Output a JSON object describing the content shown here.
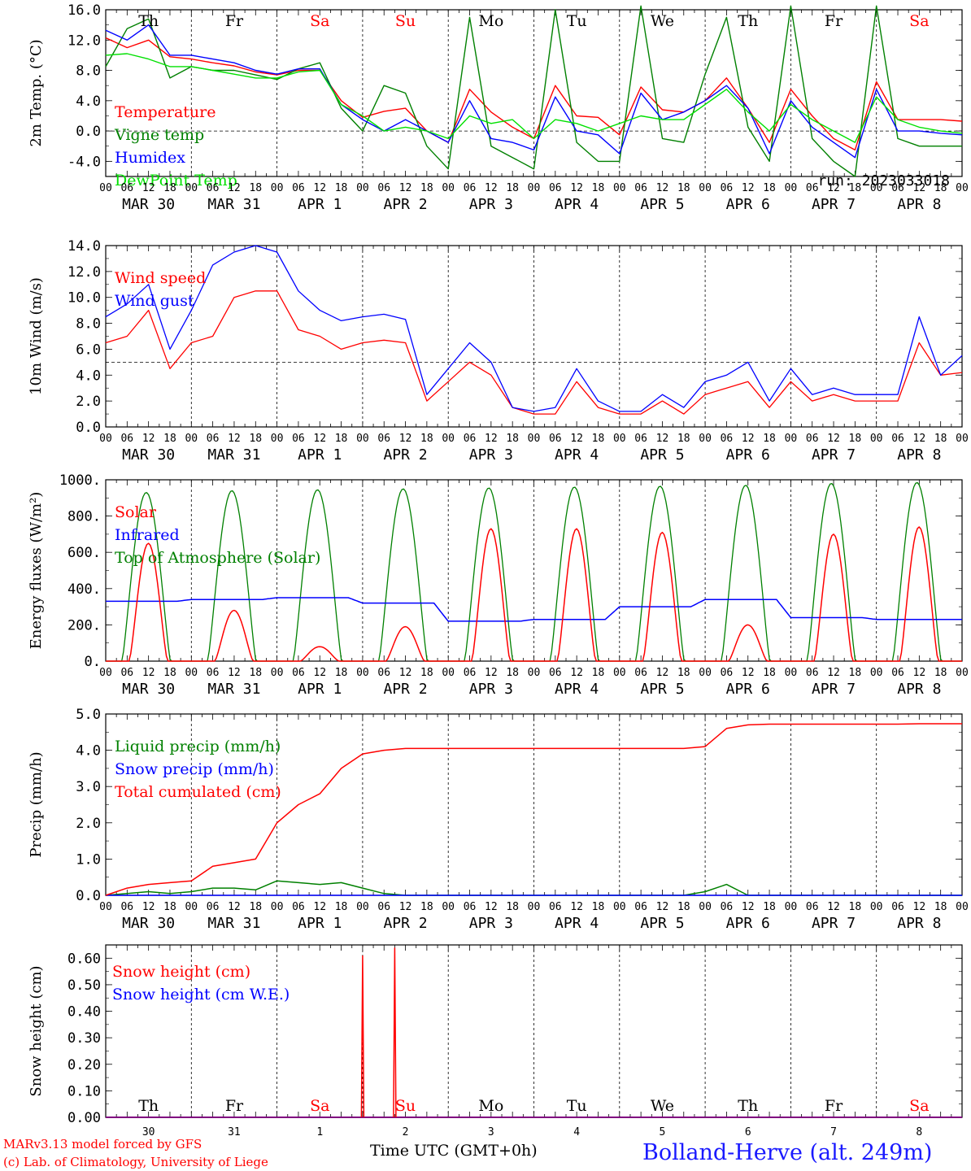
{
  "footer": {
    "model": "MARv3.13 model forced by GFS",
    "credit": "(c) Lab. of Climatology, University of Liege",
    "xlabel": "Time UTC (GMT+0h)",
    "station": "Bolland-Herve (alt. 249m)"
  },
  "run_label": "run: 2023033018",
  "days": {
    "weekday": [
      "Th",
      "Fr",
      "Sa",
      "Su",
      "Mo",
      "Tu",
      "We",
      "Th",
      "Fr",
      "Sa"
    ],
    "weekend_flags": [
      false,
      false,
      true,
      true,
      false,
      false,
      false,
      false,
      false,
      true
    ],
    "dates": [
      "MAR 30",
      "MAR 31",
      "APR  1",
      "APR  2",
      "APR  3",
      "APR  4",
      "APR  5",
      "APR  6",
      "APR  7",
      "APR  8"
    ],
    "day_numbers": [
      "30",
      "31",
      "1",
      "2",
      "3",
      "4",
      "5",
      "6",
      "7",
      "8"
    ],
    "hour_ticks": [
      "00",
      "06",
      "12",
      "18"
    ],
    "end_tick": "00"
  },
  "colors": {
    "red": "#ff0000",
    "dark_green": "#008000",
    "blue": "#0000ff",
    "light_green": "#00e000",
    "black": "#000000"
  },
  "chart_data": [
    {
      "type": "line",
      "ylabel": "2m Temp. (°C)",
      "ylim": [
        -6,
        16
      ],
      "ytick_labels": [
        "-4.0",
        "0.0",
        "4.0",
        "8.0",
        "12.0",
        "16.0"
      ],
      "ytick_values": [
        -4,
        0,
        4,
        8,
        12,
        16
      ],
      "ref_line": 0,
      "x_hours": [
        0,
        6,
        12,
        18,
        24,
        30,
        36,
        42,
        48,
        54,
        60,
        66,
        72,
        78,
        84,
        90,
        96,
        102,
        108,
        114,
        120,
        126,
        132,
        138,
        144,
        150,
        156,
        162,
        168,
        174,
        180,
        186,
        192,
        198,
        204,
        210,
        216,
        222,
        228,
        234,
        240
      ],
      "series": [
        {
          "name": "Temperature",
          "color": "#ff0000",
          "values": [
            12.3,
            11.0,
            12.0,
            9.8,
            9.5,
            9.0,
            8.6,
            7.8,
            7.4,
            8.0,
            8.0,
            4.0,
            1.8,
            2.6,
            3.0,
            0.0,
            -1.5,
            5.5,
            2.5,
            0.5,
            -1.0,
            6.0,
            2.0,
            1.8,
            -0.5,
            5.8,
            2.8,
            2.5,
            4.0,
            7.0,
            3.0,
            -1.5,
            5.5,
            2.0,
            -1.0,
            -2.5,
            6.5,
            1.5,
            1.5,
            1.5,
            1.3
          ]
        },
        {
          "name": "Vigne temp",
          "color": "#008000",
          "values": [
            8.5,
            13.5,
            14.8,
            7.0,
            8.5,
            8.0,
            8.0,
            7.4,
            6.8,
            8.2,
            9.0,
            3.0,
            0.0,
            6.0,
            5.0,
            -2.0,
            -5.0,
            15.0,
            -2.0,
            -3.5,
            -5.0,
            16.0,
            -1.5,
            -4.0,
            -4.0,
            16.5,
            -1.0,
            -1.5,
            7.5,
            15.0,
            0.5,
            -4.0,
            16.5,
            -1.0,
            -4.0,
            -6.0,
            16.5,
            -1.0,
            -2.0,
            -2.0,
            -2.0
          ]
        },
        {
          "name": "Humidex",
          "color": "#0000ff",
          "values": [
            13.3,
            12.0,
            14.0,
            10.0,
            10.0,
            9.5,
            9.0,
            8.0,
            7.5,
            8.2,
            8.2,
            3.5,
            1.5,
            0.0,
            1.5,
            0.0,
            -1.5,
            4.0,
            -1.0,
            -1.5,
            -2.5,
            4.5,
            0.0,
            -0.5,
            -3.0,
            5.0,
            1.5,
            2.5,
            4.0,
            6.0,
            3.0,
            -3.0,
            4.0,
            0.5,
            -1.5,
            -3.5,
            5.5,
            0.0,
            0.0,
            -0.3,
            -0.5
          ]
        },
        {
          "name": "DewPoint Temp",
          "color": "#00e000",
          "values": [
            10.0,
            10.2,
            9.5,
            8.5,
            8.5,
            8.0,
            7.5,
            7.0,
            7.0,
            7.8,
            8.0,
            3.5,
            2.0,
            0.0,
            0.5,
            0.0,
            -1.0,
            2.0,
            1.0,
            1.5,
            -1.0,
            1.5,
            1.0,
            0.0,
            1.0,
            2.0,
            1.5,
            1.5,
            3.5,
            5.5,
            2.5,
            0.0,
            3.5,
            1.5,
            0.0,
            -1.5,
            4.5,
            1.5,
            0.5,
            0.0,
            -0.3
          ]
        }
      ]
    },
    {
      "type": "line",
      "ylabel": "10m Wind (m/s)",
      "ylim": [
        0,
        14
      ],
      "ytick_labels": [
        "0.0",
        "2.0",
        "4.0",
        "6.0",
        "8.0",
        "10.0",
        "12.0",
        "14.0"
      ],
      "ytick_values": [
        0,
        2,
        4,
        6,
        8,
        10,
        12,
        14
      ],
      "ref_line": 5,
      "x_hours": [
        0,
        6,
        12,
        18,
        24,
        30,
        36,
        42,
        48,
        54,
        60,
        66,
        72,
        78,
        84,
        90,
        96,
        102,
        108,
        114,
        120,
        126,
        132,
        138,
        144,
        150,
        156,
        162,
        168,
        174,
        180,
        186,
        192,
        198,
        204,
        210,
        216,
        222,
        228,
        234,
        240
      ],
      "series": [
        {
          "name": "Wind speed",
          "color": "#ff0000",
          "values": [
            6.5,
            7.0,
            9.0,
            4.5,
            6.5,
            7.0,
            10.0,
            10.5,
            10.5,
            7.5,
            7.0,
            6.0,
            6.5,
            6.7,
            6.5,
            2.0,
            3.5,
            5.0,
            4.0,
            1.5,
            1.0,
            1.0,
            3.5,
            1.5,
            1.0,
            1.0,
            2.0,
            1.0,
            2.5,
            3.0,
            3.5,
            1.5,
            3.5,
            2.0,
            2.5,
            2.0,
            2.0,
            2.0,
            6.5,
            4.0,
            4.2
          ]
        },
        {
          "name": "Wind gust",
          "color": "#0000ff",
          "values": [
            8.5,
            9.5,
            11.0,
            6.0,
            9.0,
            12.5,
            13.5,
            14.0,
            13.5,
            10.5,
            9.0,
            8.2,
            8.5,
            8.7,
            8.3,
            2.5,
            4.5,
            6.5,
            5.0,
            1.5,
            1.2,
            1.5,
            4.5,
            2.0,
            1.2,
            1.2,
            2.5,
            1.5,
            3.5,
            4.0,
            5.0,
            2.0,
            4.5,
            2.5,
            3.0,
            2.5,
            2.5,
            2.5,
            8.5,
            4.0,
            5.5
          ]
        }
      ]
    },
    {
      "type": "line",
      "ylabel": "Energy fluxes (W/m²)",
      "ylim": [
        0,
        1000
      ],
      "ytick_labels": [
        "0.",
        "200.",
        "400.",
        "600.",
        "800.",
        "1000."
      ],
      "ytick_values": [
        0,
        200,
        400,
        600,
        800,
        1000
      ],
      "daily_toa_peak": [
        930,
        940,
        945,
        950,
        955,
        960,
        965,
        970,
        980,
        985
      ],
      "daily_solar_peak": [
        650,
        280,
        80,
        190,
        730,
        730,
        710,
        200,
        700,
        740
      ],
      "daily_infrared": [
        330,
        340,
        350,
        320,
        220,
        230,
        300,
        340,
        240,
        230
      ],
      "series": [
        {
          "name": "Solar",
          "color": "#ff0000"
        },
        {
          "name": "Infrared",
          "color": "#0000ff"
        },
        {
          "name": "Top of Atmosphere (Solar)",
          "color": "#008000"
        }
      ]
    },
    {
      "type": "line",
      "ylabel": "Precip (mm/h)",
      "ylim": [
        0,
        5
      ],
      "ytick_labels": [
        "0.0",
        "1.0",
        "2.0",
        "3.0",
        "4.0",
        "5.0"
      ],
      "ytick_values": [
        0,
        1,
        2,
        3,
        4,
        5
      ],
      "x_hours": [
        0,
        6,
        12,
        18,
        24,
        30,
        36,
        42,
        48,
        54,
        60,
        66,
        72,
        78,
        84,
        90,
        96,
        102,
        108,
        114,
        120,
        126,
        132,
        138,
        144,
        150,
        156,
        162,
        168,
        174,
        180,
        186,
        192,
        198,
        204,
        210,
        216,
        222,
        228,
        234,
        240
      ],
      "series": [
        {
          "name": "Liquid precip (mm/h)",
          "color": "#008000",
          "values": [
            0.0,
            0.05,
            0.1,
            0.05,
            0.1,
            0.2,
            0.2,
            0.15,
            0.4,
            0.35,
            0.3,
            0.35,
            0.2,
            0.05,
            0.0,
            0.0,
            0.0,
            0.0,
            0.0,
            0.0,
            0.0,
            0.0,
            0.0,
            0.0,
            0.0,
            0.0,
            0.0,
            0.0,
            0.1,
            0.3,
            0.0,
            0.0,
            0.0,
            0.0,
            0.0,
            0.0,
            0.0,
            0.0,
            0.0,
            0.0,
            0.0
          ]
        },
        {
          "name": "Snow precip (mm/h)",
          "color": "#0000ff",
          "values": [
            0,
            0,
            0,
            0,
            0,
            0,
            0,
            0,
            0,
            0,
            0,
            0,
            0,
            0,
            0,
            0,
            0,
            0,
            0,
            0,
            0,
            0,
            0,
            0,
            0,
            0,
            0,
            0,
            0,
            0,
            0,
            0,
            0,
            0,
            0,
            0,
            0,
            0,
            0,
            0,
            0
          ]
        },
        {
          "name": "Total cumulated (cm)",
          "color": "#ff0000",
          "values": [
            0.0,
            0.2,
            0.3,
            0.35,
            0.4,
            0.8,
            0.9,
            1.0,
            2.0,
            2.5,
            2.8,
            3.5,
            3.9,
            4.0,
            4.05,
            4.05,
            4.05,
            4.05,
            4.05,
            4.05,
            4.05,
            4.05,
            4.05,
            4.05,
            4.05,
            4.05,
            4.05,
            4.05,
            4.1,
            4.6,
            4.7,
            4.72,
            4.72,
            4.72,
            4.72,
            4.72,
            4.72,
            4.72,
            4.73,
            4.73,
            4.73
          ]
        }
      ]
    },
    {
      "type": "line",
      "ylabel": "Snow height (cm)",
      "ylim": [
        0,
        0.65
      ],
      "ytick_labels": [
        "0.00",
        "0.10",
        "0.20",
        "0.30",
        "0.40",
        "0.50",
        "0.60"
      ],
      "ytick_values": [
        0,
        0.1,
        0.2,
        0.3,
        0.4,
        0.5,
        0.6
      ],
      "spikes": [
        {
          "hour": 72,
          "value": 0.61
        },
        {
          "hour": 81,
          "value": 0.64
        }
      ],
      "series": [
        {
          "name": "Snow height (cm)",
          "color": "#ff0000"
        },
        {
          "name": "Snow height (cm W.E.)",
          "color": "#0000ff"
        }
      ]
    }
  ]
}
